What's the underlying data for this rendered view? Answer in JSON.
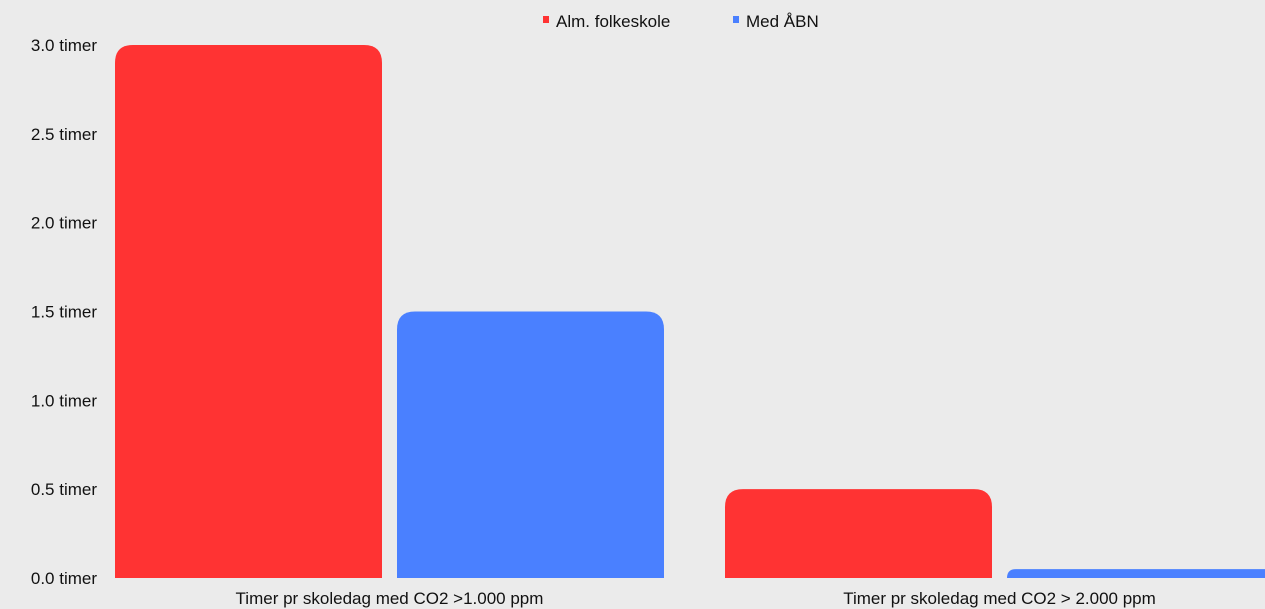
{
  "chart_data": {
    "type": "bar",
    "categories": [
      "Timer pr skoledag med CO2 >1.000 ppm",
      "Timer pr skoledag med CO2 > 2.000 ppm"
    ],
    "series": [
      {
        "name": "Alm. folkeskole",
        "color": "#ff3333",
        "values": [
          3.0,
          0.5
        ]
      },
      {
        "name": "Med ÅBN",
        "color": "#4a80ff",
        "values": [
          1.5,
          0.05
        ]
      }
    ],
    "y_ticks": [
      {
        "value": 0.0,
        "label": "0.0 timer"
      },
      {
        "value": 0.5,
        "label": "0.5 timer"
      },
      {
        "value": 1.0,
        "label": "1.0 timer"
      },
      {
        "value": 1.5,
        "label": "1.5 timer"
      },
      {
        "value": 2.0,
        "label": "2.0 timer"
      },
      {
        "value": 2.5,
        "label": "2.5 timer"
      },
      {
        "value": 3.0,
        "label": "3.0 timer"
      }
    ],
    "ylim": [
      0,
      3.0
    ],
    "grid": false,
    "legend_position": "top-center"
  }
}
